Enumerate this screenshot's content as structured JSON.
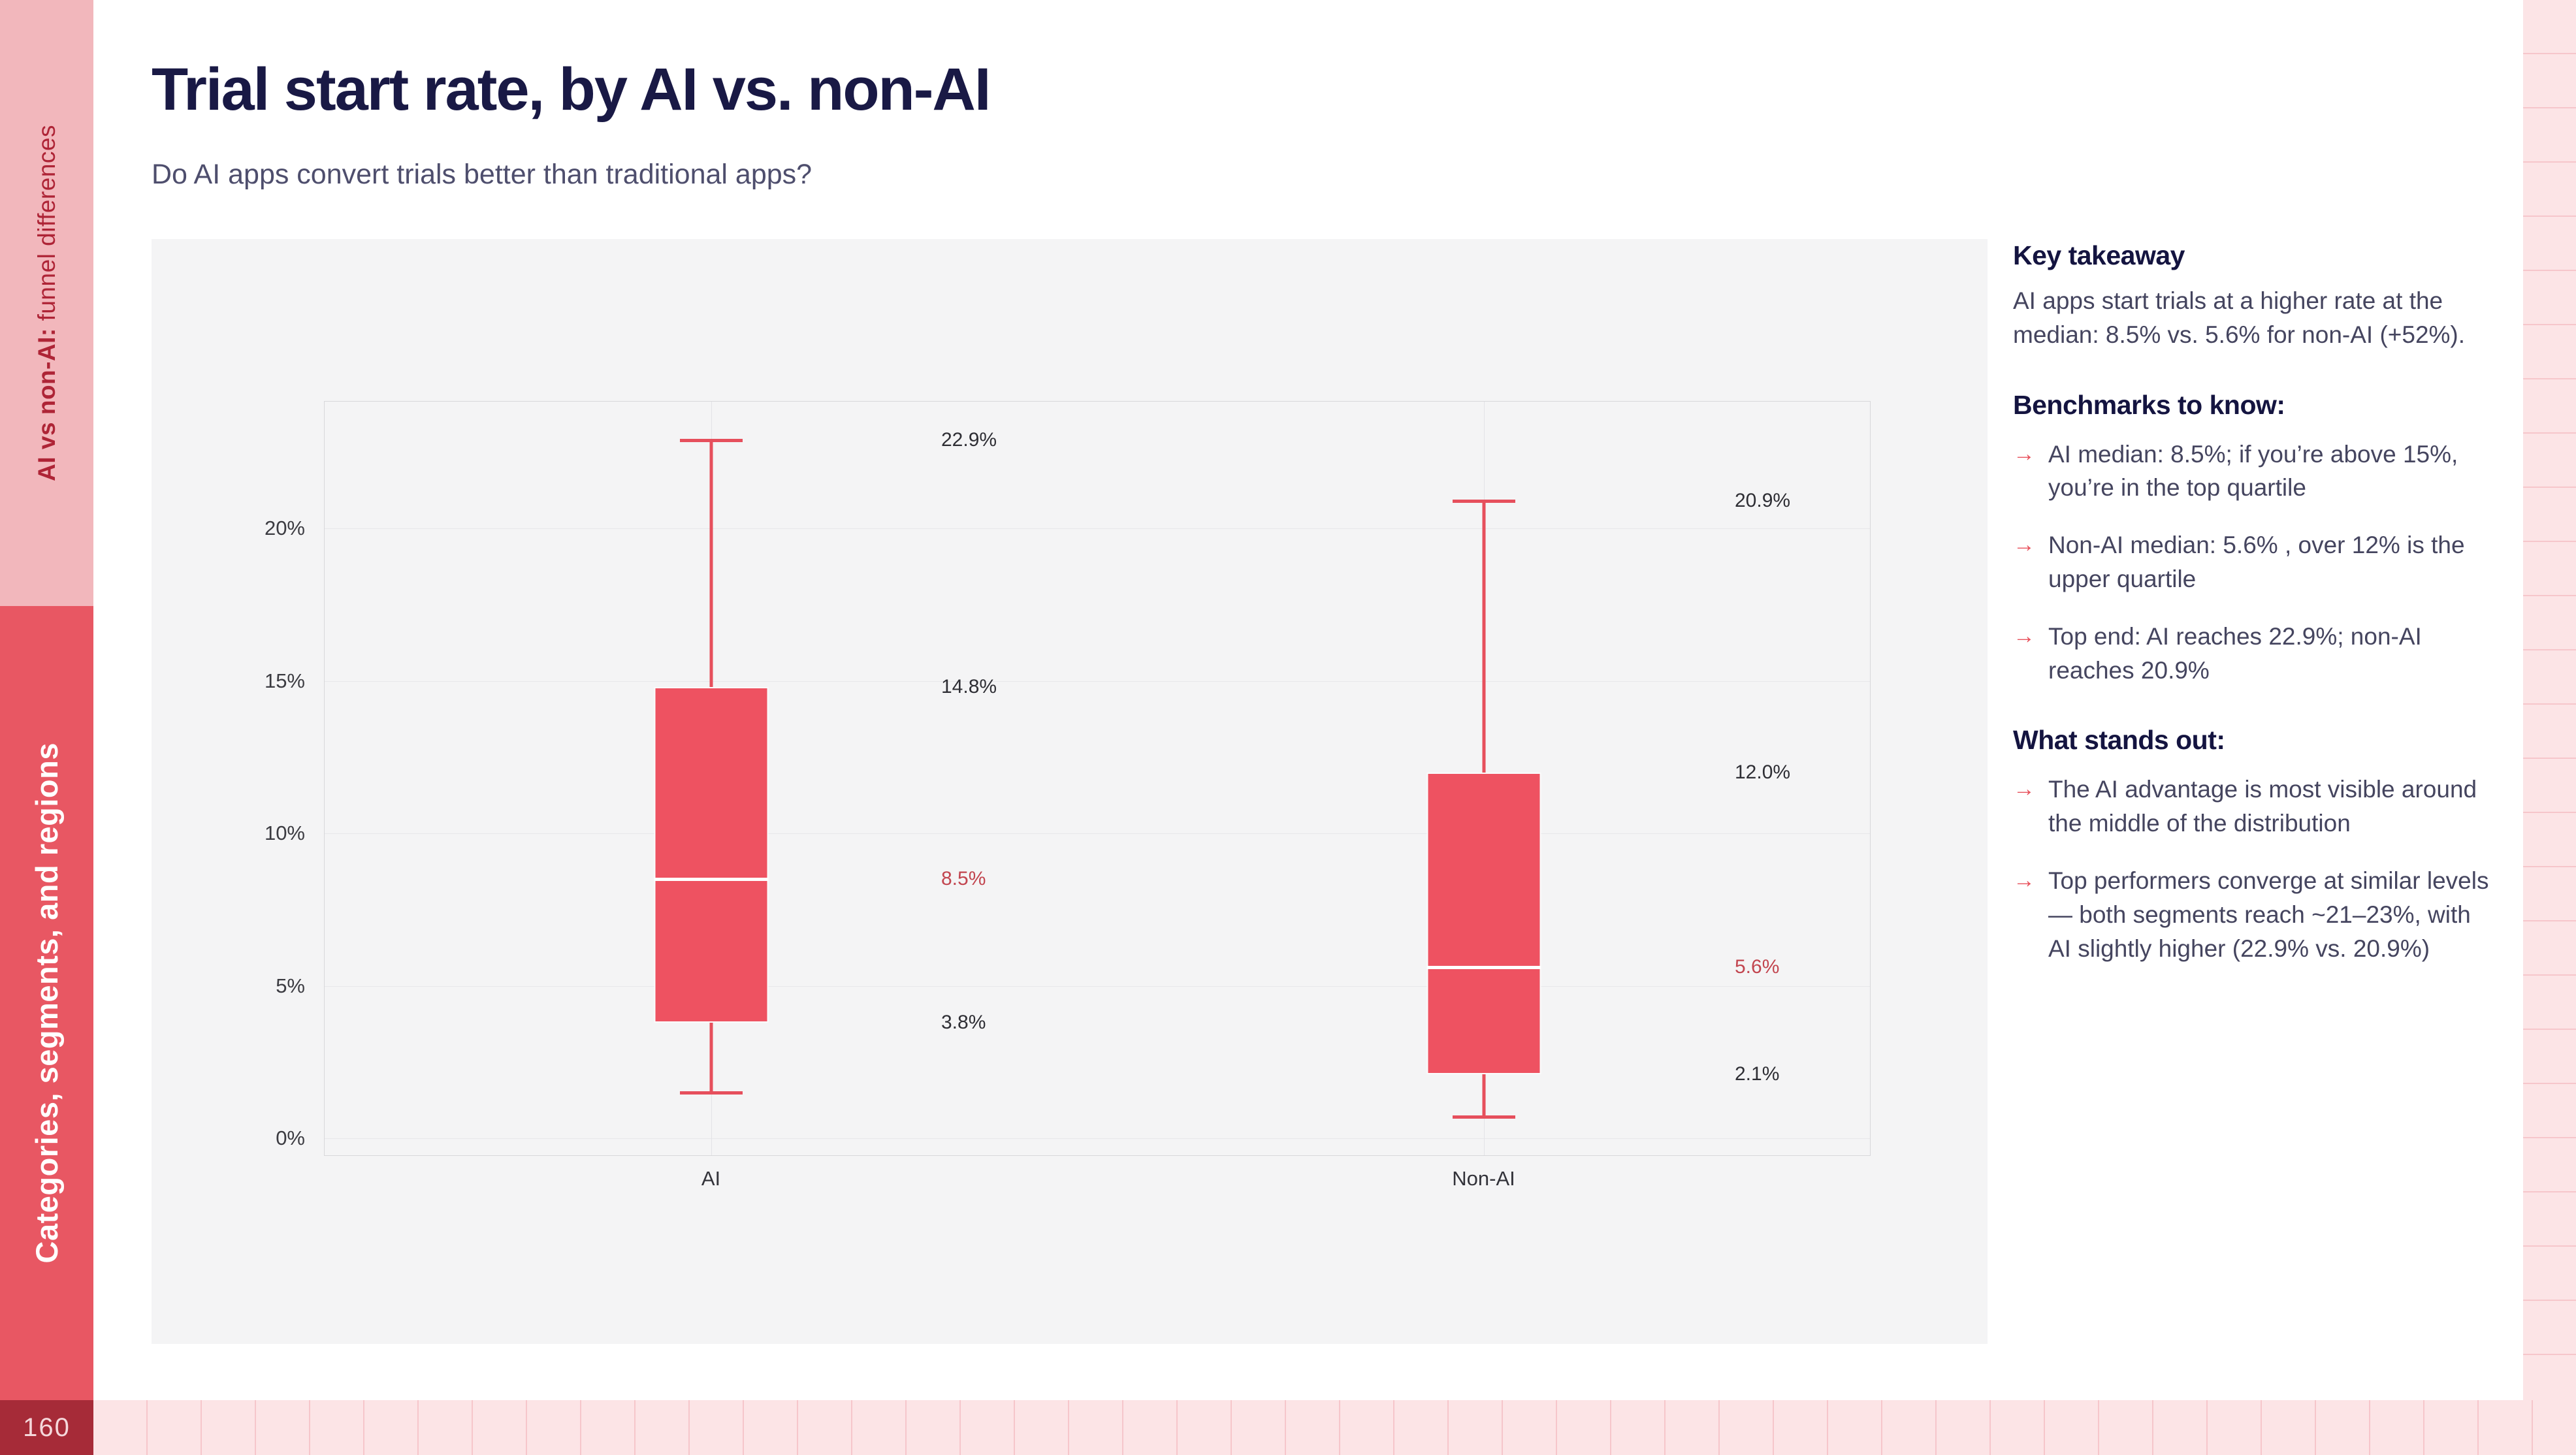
{
  "slide": {
    "title": "Trial start rate, by AI vs. non-AI",
    "subtitle": "Do AI apps convert trials better than traditional apps?",
    "page_number": "160",
    "sidebar_top_bold": "AI vs non-AI:",
    "sidebar_top_rest": " funnel differences",
    "sidebar_bottom": "Categories, segments, and regions"
  },
  "panel": {
    "key_takeaway_heading": "Key takeaway",
    "key_takeaway_body": "AI apps start trials at a higher rate at the median: 8.5% vs. 5.6% for non-AI (+52%).",
    "benchmarks_heading": "Benchmarks to know:",
    "benchmarks": [
      "AI median: 8.5%; if you’re above 15%, you’re in the top quartile",
      "Non-AI median: 5.6% , over 12% is the upper quartile",
      "Top end: AI reaches 22.9%; non-AI reaches 20.9%"
    ],
    "stands_out_heading": "What stands out:",
    "stands_out": [
      "The AI advantage is most visible around the middle of the distribution",
      "Top performers converge at similar levels — both segments reach ~21–23%, with AI slightly higher (22.9% vs. 20.9%)"
    ],
    "bullet_glyph": "→"
  },
  "chart_data": {
    "type": "box",
    "title": "",
    "xlabel": "",
    "ylabel": "",
    "categories": [
      "AI",
      "Non-AI"
    ],
    "ylim": [
      -0.56,
      24.16
    ],
    "grid": true,
    "unit": "%",
    "yticks": [
      {
        "value": 0,
        "label": "0%"
      },
      {
        "value": 5,
        "label": "5%"
      },
      {
        "value": 10,
        "label": "10%"
      },
      {
        "value": 15,
        "label": "15%"
      },
      {
        "value": 20,
        "label": "20%"
      }
    ],
    "series": [
      {
        "name": "AI",
        "whisker_low": 1.5,
        "q1": 3.8,
        "median": 8.5,
        "q3": 14.8,
        "whisker_high": 22.9,
        "labels": [
          {
            "value": 22.9,
            "label": "22.9%",
            "emphasis": false
          },
          {
            "value": 14.8,
            "label": "14.8%",
            "emphasis": false
          },
          {
            "value": 8.5,
            "label": "8.5%",
            "emphasis": true
          },
          {
            "value": 3.8,
            "label": "3.8%",
            "emphasis": false
          }
        ]
      },
      {
        "name": "Non-AI",
        "whisker_low": 0.7,
        "q1": 2.1,
        "median": 5.6,
        "q3": 12.0,
        "whisker_high": 20.9,
        "labels": [
          {
            "value": 20.9,
            "label": "20.9%",
            "emphasis": false
          },
          {
            "value": 12.0,
            "label": "12.0%",
            "emphasis": false
          },
          {
            "value": 5.6,
            "label": "5.6%",
            "emphasis": true
          },
          {
            "value": 2.1,
            "label": "2.1%",
            "emphasis": false
          }
        ]
      }
    ],
    "colors": {
      "box_fill": "#ee5261",
      "whisker": "#e64f5c",
      "median_line": "#ffffff",
      "value_label": "#2e2e34",
      "value_label_emphasis": "#c2454f",
      "grid_line": "#e7e7ea",
      "category_line": "#e3e3e7",
      "tick_text": "#3b3b41",
      "axis_category_text": "#33333a",
      "plot_border": "#d7d7da",
      "panel_background": "#f4f4f5"
    }
  },
  "theme_colors": {
    "title_navy": "#191945",
    "subtitle_slate": "#4e4e6d",
    "accent_red": "#e8515c",
    "sidebar_pink": "#f2b7bc",
    "sidebar_red": "#e85763",
    "sidebar_text_red": "#ae2436",
    "page_box_red": "#a62b38",
    "strip_pink": "#fce4e6",
    "strip_line_pink": "#f6c6cb"
  }
}
